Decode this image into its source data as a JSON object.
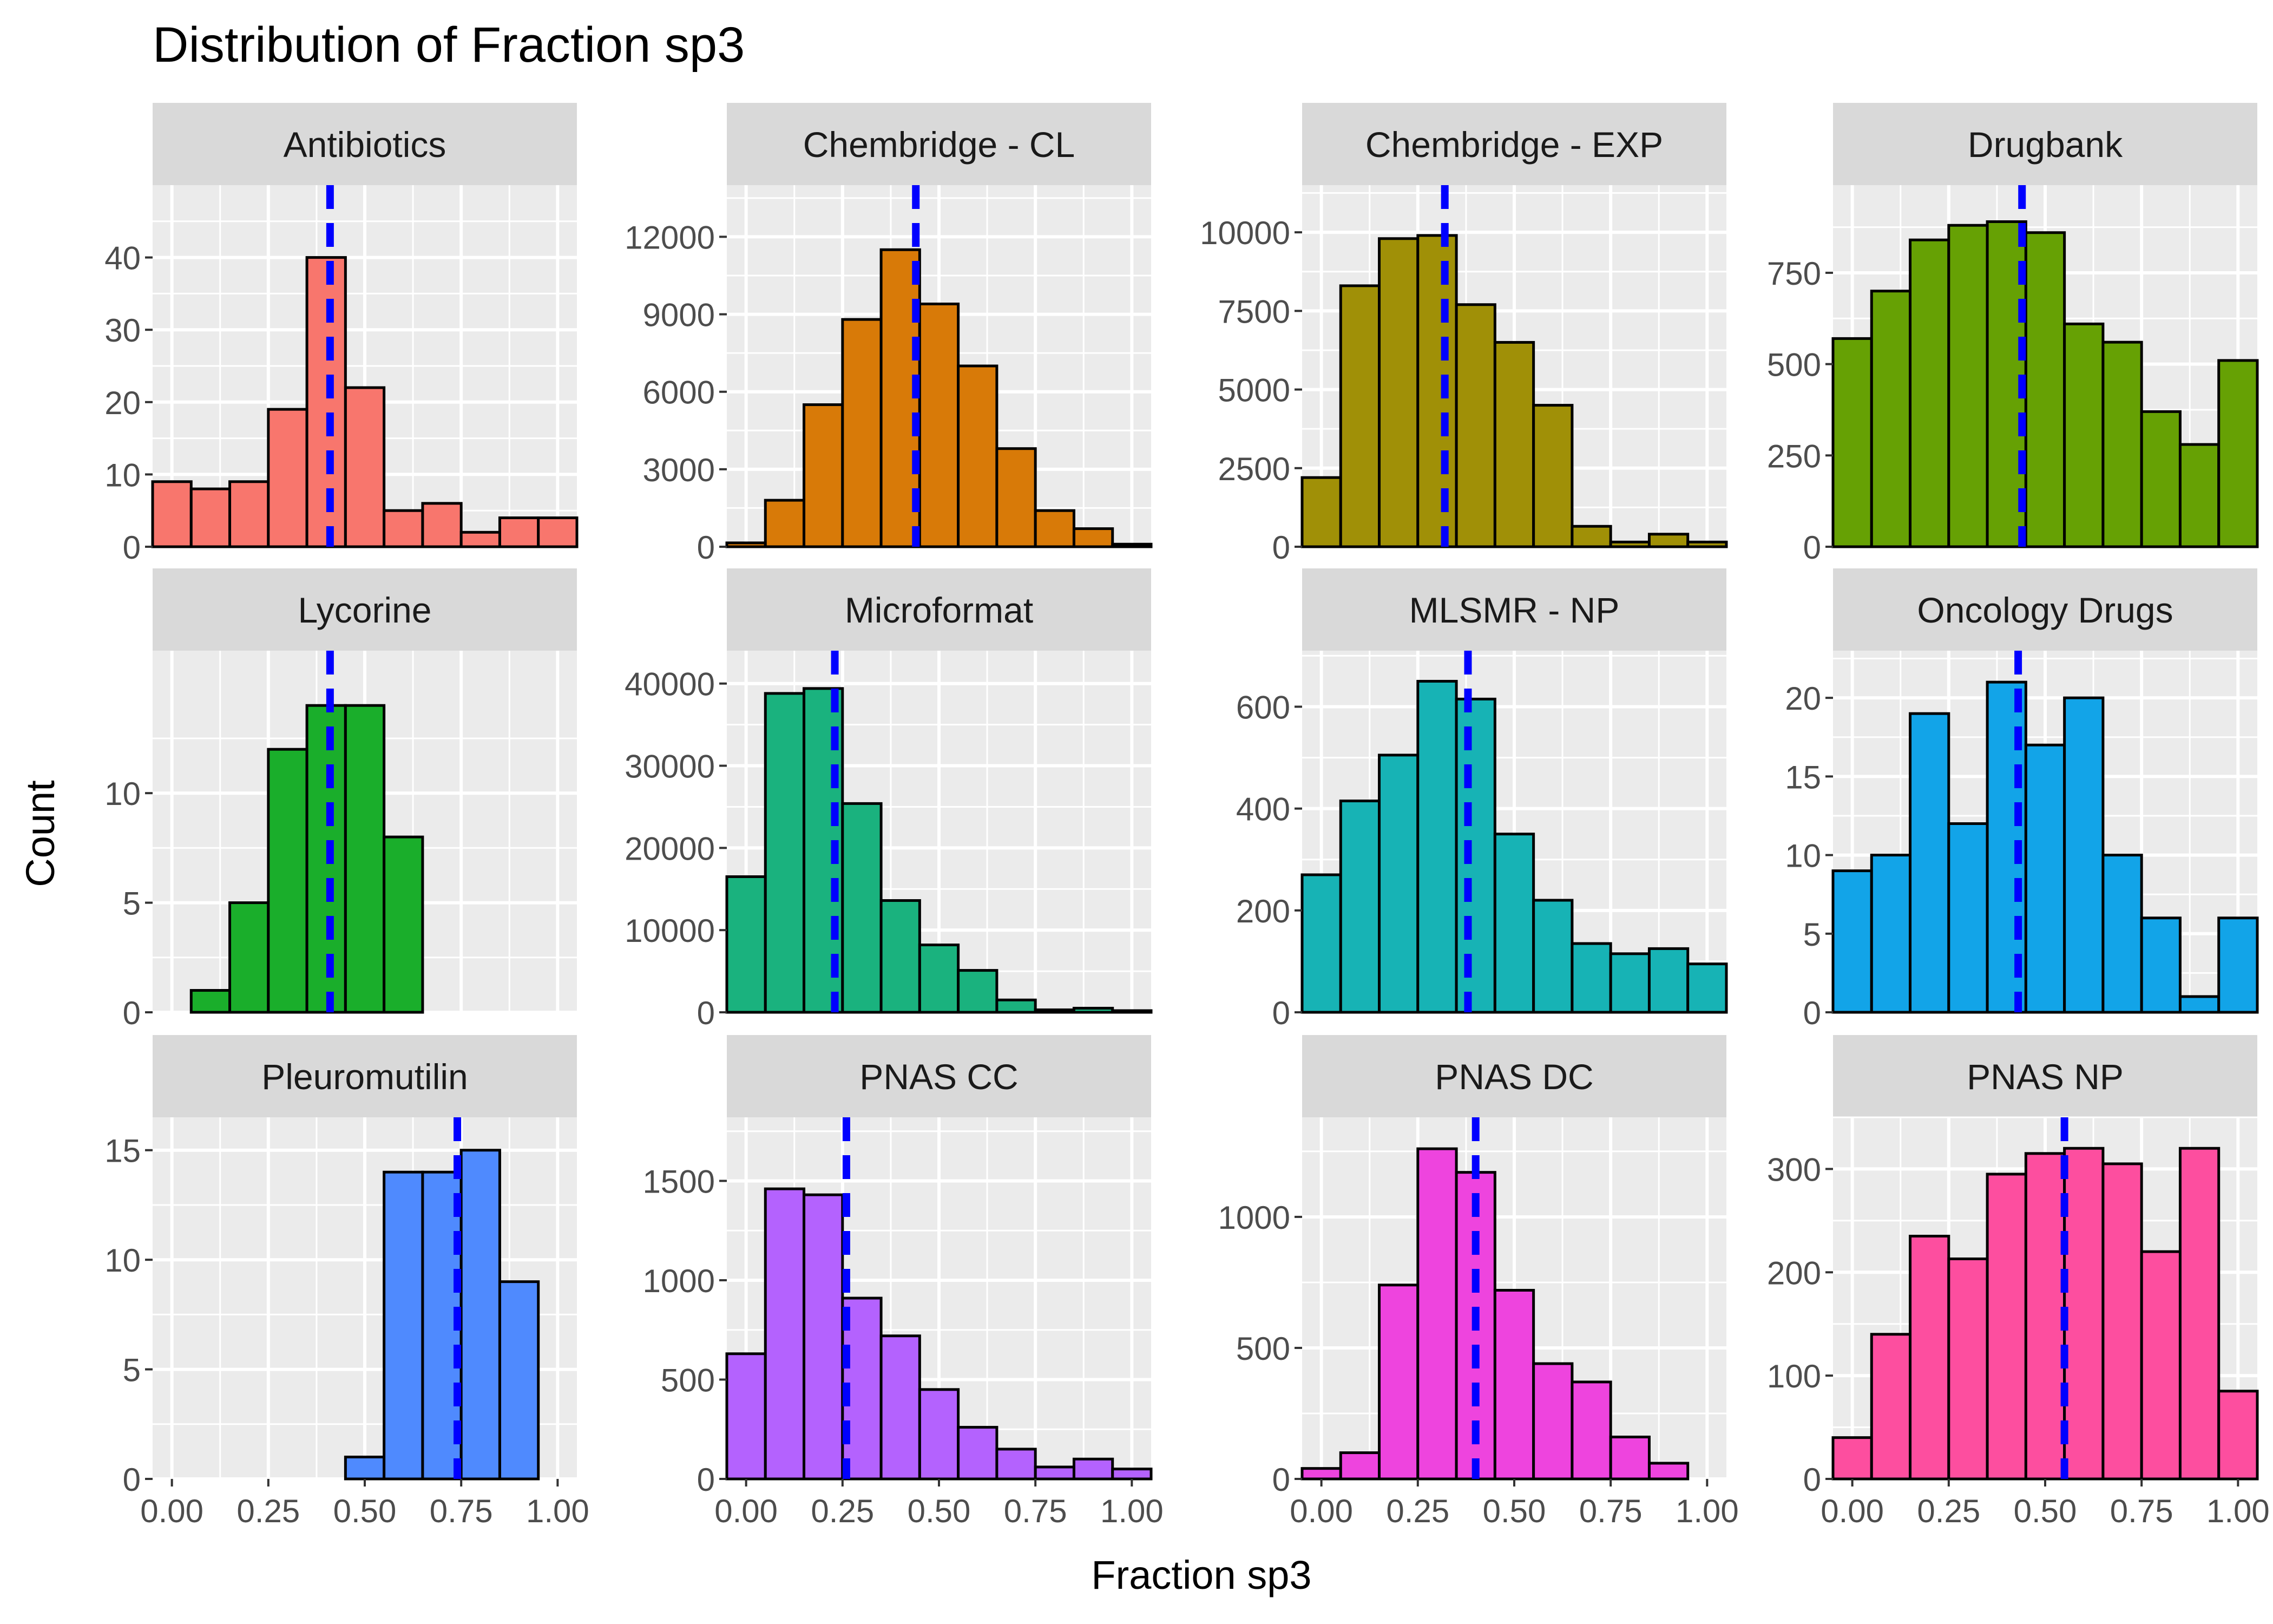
{
  "figure": {
    "title": "Distribution of Fraction sp3",
    "xlabel": "Fraction sp3",
    "ylabel": "Count"
  },
  "style": {
    "panel_bg": "#EBEBEB",
    "strip_bg": "#D9D9D9",
    "grid": "#FFFFFF",
    "mean_line": "#0000FF",
    "bar_outline": "#000000"
  },
  "chart_data": [
    {
      "type": "bar",
      "facet": "Antibiotics",
      "color": "#F8766D",
      "x": [
        0,
        0.1,
        0.2,
        0.3,
        0.4,
        0.5,
        0.6,
        0.7,
        0.8,
        0.9,
        1.0
      ],
      "values": [
        9,
        8,
        9,
        19,
        40,
        22,
        5,
        6,
        2,
        4,
        4
      ],
      "mean": 0.41,
      "xlim": [
        -0.05,
        1.05
      ],
      "ylim": [
        0,
        50
      ],
      "yticks": [
        0,
        10,
        20,
        30,
        40
      ],
      "xticks": [
        "0.00",
        "0.25",
        "0.50",
        "0.75",
        "1.00"
      ],
      "xtick_values": [
        0,
        0.25,
        0.5,
        0.75,
        1.0
      ]
    },
    {
      "type": "bar",
      "facet": "Chembridge - CL",
      "color": "#D87A08",
      "x": [
        0,
        0.1,
        0.2,
        0.3,
        0.4,
        0.5,
        0.6,
        0.7,
        0.8,
        0.9,
        1.0
      ],
      "values": [
        150,
        1800,
        5500,
        8800,
        11500,
        9400,
        7000,
        3800,
        1400,
        700,
        100
      ],
      "mean": 0.44,
      "xlim": [
        -0.05,
        1.05
      ],
      "ylim": [
        0,
        14000
      ],
      "yticks": [
        0,
        3000,
        6000,
        9000,
        12000
      ],
      "xticks": [
        "0.00",
        "0.25",
        "0.50",
        "0.75",
        "1.00"
      ],
      "xtick_values": [
        0,
        0.25,
        0.5,
        0.75,
        1.0
      ]
    },
    {
      "type": "bar",
      "facet": "Chembridge - EXP",
      "color": "#A09007",
      "x": [
        0,
        0.1,
        0.2,
        0.3,
        0.4,
        0.5,
        0.6,
        0.7,
        0.8,
        0.9,
        1.0
      ],
      "values": [
        2200,
        8300,
        9800,
        9900,
        7700,
        6500,
        4500,
        650,
        150,
        400,
        150
      ],
      "mean": 0.32,
      "xlim": [
        -0.05,
        1.05
      ],
      "ylim": [
        0,
        11500
      ],
      "yticks": [
        0,
        2500,
        5000,
        7500,
        10000
      ],
      "xticks": [
        "0.00",
        "0.25",
        "0.50",
        "0.75",
        "1.00"
      ],
      "xtick_values": [
        0,
        0.25,
        0.5,
        0.75,
        1.0
      ]
    },
    {
      "type": "bar",
      "facet": "Drugbank",
      "color": "#66A104",
      "x": [
        0,
        0.1,
        0.2,
        0.3,
        0.4,
        0.5,
        0.6,
        0.7,
        0.8,
        0.9,
        1.0
      ],
      "values": [
        570,
        700,
        840,
        880,
        890,
        860,
        610,
        560,
        370,
        280,
        510
      ],
      "mean": 0.44,
      "xlim": [
        -0.05,
        1.05
      ],
      "ylim": [
        0,
        990
      ],
      "yticks": [
        0,
        250,
        500,
        750
      ],
      "xticks": [
        "0.00",
        "0.25",
        "0.50",
        "0.75",
        "1.00"
      ],
      "xtick_values": [
        0,
        0.25,
        0.5,
        0.75,
        1.0
      ]
    },
    {
      "type": "bar",
      "facet": "Lycorine",
      "color": "#1AAE2B",
      "x": [
        0,
        0.1,
        0.2,
        0.3,
        0.4,
        0.5,
        0.6,
        0.7,
        0.8,
        0.9,
        1.0
      ],
      "values": [
        0,
        1,
        5,
        12,
        14,
        14,
        8,
        0,
        0,
        0,
        0
      ],
      "mean": 0.41,
      "xlim": [
        -0.05,
        1.05
      ],
      "ylim": [
        0,
        16.5
      ],
      "yticks": [
        0,
        5,
        10
      ],
      "xticks": [
        "0.00",
        "0.25",
        "0.50",
        "0.75",
        "1.00"
      ],
      "xtick_values": [
        0,
        0.25,
        0.5,
        0.75,
        1.0
      ]
    },
    {
      "type": "bar",
      "facet": "Microformat",
      "color": "#1AB27E",
      "x": [
        0,
        0.1,
        0.2,
        0.3,
        0.4,
        0.5,
        0.6,
        0.7,
        0.8,
        0.9,
        1.0
      ],
      "values": [
        16500,
        38800,
        39400,
        25400,
        13600,
        8200,
        5100,
        1500,
        300,
        500,
        200
      ],
      "mean": 0.23,
      "xlim": [
        -0.05,
        1.05
      ],
      "ylim": [
        0,
        44000
      ],
      "yticks": [
        0,
        10000,
        20000,
        30000,
        40000
      ],
      "xticks": [
        "0.00",
        "0.25",
        "0.50",
        "0.75",
        "1.00"
      ],
      "xtick_values": [
        0,
        0.25,
        0.5,
        0.75,
        1.0
      ]
    },
    {
      "type": "bar",
      "facet": "MLSMR - NP",
      "color": "#17B3B5",
      "x": [
        0,
        0.1,
        0.2,
        0.3,
        0.4,
        0.5,
        0.6,
        0.7,
        0.8,
        0.9,
        1.0
      ],
      "values": [
        270,
        415,
        505,
        650,
        615,
        350,
        220,
        135,
        115,
        125,
        95
      ],
      "mean": 0.38,
      "xlim": [
        -0.05,
        1.05
      ],
      "ylim": [
        0,
        710
      ],
      "yticks": [
        0,
        200,
        400,
        600
      ],
      "xticks": [
        "0.00",
        "0.25",
        "0.50",
        "0.75",
        "1.00"
      ],
      "xtick_values": [
        0,
        0.25,
        0.5,
        0.75,
        1.0
      ]
    },
    {
      "type": "bar",
      "facet": "Oncology Drugs",
      "color": "#12A4E8",
      "x": [
        0,
        0.1,
        0.2,
        0.3,
        0.4,
        0.5,
        0.6,
        0.7,
        0.8,
        0.9,
        1.0
      ],
      "values": [
        9,
        10,
        19,
        12,
        21,
        17,
        20,
        10,
        6,
        1,
        6
      ],
      "mean": 0.43,
      "xlim": [
        -0.05,
        1.05
      ],
      "ylim": [
        0,
        23
      ],
      "yticks": [
        0,
        5,
        10,
        15,
        20
      ],
      "xticks": [
        "0.00",
        "0.25",
        "0.50",
        "0.75",
        "1.00"
      ],
      "xtick_values": [
        0,
        0.25,
        0.5,
        0.75,
        1.0
      ]
    },
    {
      "type": "bar",
      "facet": "Pleuromutilin",
      "color": "#4F8AFE",
      "x": [
        0,
        0.1,
        0.2,
        0.3,
        0.4,
        0.5,
        0.6,
        0.7,
        0.8,
        0.9,
        1.0
      ],
      "values": [
        0,
        0,
        0,
        0,
        0,
        1,
        14,
        14,
        15,
        9,
        0
      ],
      "mean": 0.74,
      "xlim": [
        -0.05,
        1.05
      ],
      "ylim": [
        0,
        16.5
      ],
      "yticks": [
        0,
        5,
        10,
        15
      ],
      "xticks": [
        "0.00",
        "0.25",
        "0.50",
        "0.75",
        "1.00"
      ],
      "xtick_values": [
        0,
        0.25,
        0.5,
        0.75,
        1.0
      ]
    },
    {
      "type": "bar",
      "facet": "PNAS CC",
      "color": "#B462FE",
      "x": [
        0,
        0.1,
        0.2,
        0.3,
        0.4,
        0.5,
        0.6,
        0.7,
        0.8,
        0.9,
        1.0
      ],
      "values": [
        630,
        1460,
        1430,
        910,
        720,
        450,
        260,
        150,
        60,
        100,
        50
      ],
      "mean": 0.26,
      "xlim": [
        -0.05,
        1.05
      ],
      "ylim": [
        0,
        1820
      ],
      "yticks": [
        0,
        500,
        1000,
        1500
      ],
      "xticks": [
        "0.00",
        "0.25",
        "0.50",
        "0.75",
        "1.00"
      ],
      "xtick_values": [
        0,
        0.25,
        0.5,
        0.75,
        1.0
      ]
    },
    {
      "type": "bar",
      "facet": "PNAS DC",
      "color": "#EE44DE",
      "x": [
        0,
        0.1,
        0.2,
        0.3,
        0.4,
        0.5,
        0.6,
        0.7,
        0.8,
        0.9,
        1.0
      ],
      "values": [
        40,
        100,
        740,
        1260,
        1170,
        720,
        440,
        370,
        160,
        60,
        0
      ],
      "mean": 0.4,
      "xlim": [
        -0.05,
        1.05
      ],
      "ylim": [
        0,
        1380
      ],
      "yticks": [
        0,
        500,
        1000
      ],
      "xticks": [
        "0.00",
        "0.25",
        "0.50",
        "0.75",
        "1.00"
      ],
      "xtick_values": [
        0,
        0.25,
        0.5,
        0.75,
        1.0
      ]
    },
    {
      "type": "bar",
      "facet": "PNAS NP",
      "color": "#FD4E9F",
      "x": [
        0,
        0.1,
        0.2,
        0.3,
        0.4,
        0.5,
        0.6,
        0.7,
        0.8,
        0.9,
        1.0
      ],
      "values": [
        40,
        140,
        235,
        213,
        295,
        315,
        320,
        305,
        220,
        320,
        85
      ],
      "mean": 0.55,
      "xlim": [
        -0.05,
        1.05
      ],
      "ylim": [
        0,
        350
      ],
      "yticks": [
        0,
        100,
        200,
        300
      ],
      "xticks": [
        "0.00",
        "0.25",
        "0.50",
        "0.75",
        "1.00"
      ],
      "xtick_values": [
        0,
        0.25,
        0.5,
        0.75,
        1.0
      ]
    }
  ]
}
